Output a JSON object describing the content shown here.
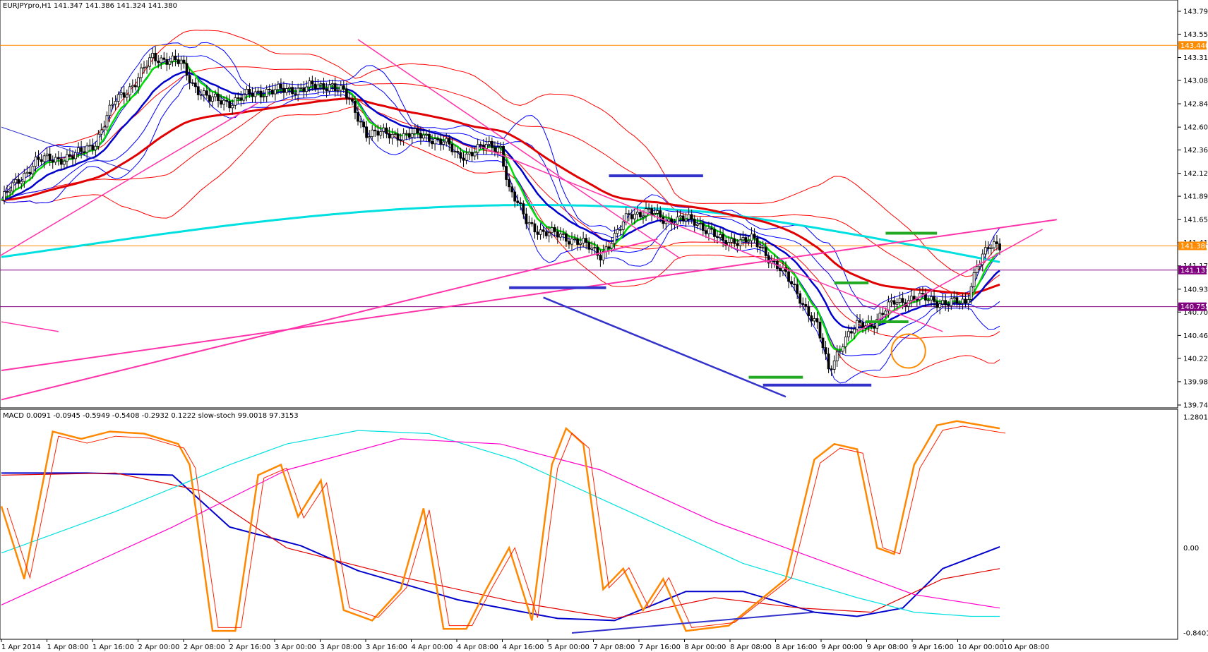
{
  "chart_data": [
    {
      "type": "candlestick",
      "header": "EURJPYpro,H1  141.347 141.386 141.324 141.380",
      "ylim": [
        139.745,
        143.79
      ],
      "price_ticks": [
        143.79,
        143.555,
        143.315,
        143.08,
        142.84,
        142.6,
        142.365,
        142.125,
        141.89,
        141.65,
        141.415,
        141.175,
        140.935,
        140.7,
        140.46,
        140.225,
        139.985,
        139.745
      ],
      "price_tick_labels": [
        "143.790",
        "143.555",
        "143.315",
        "143.080",
        "142.840",
        "142.600",
        "142.365",
        "142.125",
        "141.890",
        "141.650",
        "141.415",
        "141.175",
        "140.935",
        "140.700",
        "140.460",
        "140.225",
        "139.985",
        "139.745"
      ],
      "horizontal_levels": [
        {
          "value": 143.44,
          "label": "143.440",
          "color": "#FF8C00"
        },
        {
          "value": 141.38,
          "label": "141.380",
          "color": "#FF8C00"
        },
        {
          "value": 141.131,
          "label": "141.131",
          "color": "#800080"
        },
        {
          "value": 140.755,
          "label": "140.755",
          "color": "#800080"
        }
      ],
      "close_path": [
        [
          0,
          141.85
        ],
        [
          6,
          142.05
        ],
        [
          12,
          142.25
        ],
        [
          20,
          142.28
        ],
        [
          26,
          142.3
        ],
        [
          33,
          142.45
        ],
        [
          40,
          142.88
        ],
        [
          47,
          143.06
        ],
        [
          53,
          143.32
        ],
        [
          58,
          143.3
        ],
        [
          63,
          143.25
        ],
        [
          67,
          143.05
        ],
        [
          73,
          142.88
        ],
        [
          80,
          142.86
        ],
        [
          86,
          142.92
        ],
        [
          93,
          142.98
        ],
        [
          100,
          142.97
        ],
        [
          107,
          143.02
        ],
        [
          112,
          143.0
        ],
        [
          116,
          143.05
        ],
        [
          120,
          142.96
        ],
        [
          128,
          142.55
        ],
        [
          135,
          142.52
        ],
        [
          143,
          142.52
        ],
        [
          150,
          142.5
        ],
        [
          155,
          142.45
        ],
        [
          160,
          142.3
        ],
        [
          165,
          142.35
        ],
        [
          170,
          142.4
        ],
        [
          175,
          142.4
        ],
        [
          178,
          141.95
        ],
        [
          184,
          141.65
        ],
        [
          190,
          141.5
        ],
        [
          196,
          141.5
        ],
        [
          202,
          141.42
        ],
        [
          207,
          141.35
        ],
        [
          210,
          141.3
        ],
        [
          215,
          141.45
        ],
        [
          220,
          141.72
        ],
        [
          227,
          141.72
        ],
        [
          233,
          141.65
        ],
        [
          238,
          141.65
        ],
        [
          243,
          141.63
        ],
        [
          248,
          141.55
        ],
        [
          253,
          141.4
        ],
        [
          258,
          141.45
        ],
        [
          263,
          141.44
        ],
        [
          268,
          141.3
        ],
        [
          273,
          141.15
        ],
        [
          280,
          140.85
        ],
        [
          286,
          140.55
        ],
        [
          290,
          140.1
        ],
        [
          295,
          140.4
        ],
        [
          300,
          140.55
        ],
        [
          306,
          140.6
        ],
        [
          313,
          140.8
        ],
        [
          320,
          140.85
        ],
        [
          326,
          140.82
        ],
        [
          332,
          140.8
        ],
        [
          338,
          140.78
        ],
        [
          342,
          141.2
        ],
        [
          346,
          141.35
        ],
        [
          350,
          141.38
        ]
      ],
      "overlays": [
        {
          "name": "fast EMA",
          "color": "#00DD00"
        },
        {
          "name": "medium EMA",
          "color": "#0000CC"
        },
        {
          "name": "slow EMA",
          "color": "#E00000"
        },
        {
          "name": "long EMA",
          "color": "#00E0E0"
        },
        {
          "name": "bollinger bands",
          "color": "#FF0000"
        }
      ],
      "x_tick_labels": [
        "1 Apr 2014",
        "1 Apr 08:00",
        "1 Apr 16:00",
        "2 Apr 00:00",
        "2 Apr 08:00",
        "2 Apr 16:00",
        "3 Apr 00:00",
        "3 Apr 08:00",
        "3 Apr 16:00",
        "4 Apr 00:00",
        "4 Apr 08:00",
        "4 Apr 16:00",
        "5 Apr 00:00",
        "7 Apr 08:00",
        "7 Apr 16:00",
        "8 Apr 00:00",
        "8 Apr 08:00",
        "8 Apr 16:00",
        "9 Apr 00:00",
        "9 Apr 08:00",
        "9 Apr 16:00",
        "10 Apr 00:00",
        "10 Apr 08:00"
      ]
    },
    {
      "type": "line",
      "header": "MACD 0.0091 -0.0945 -0.5949 -0.5408 -0.2932 0.1222  slow-stoch 99.0018 97.3153",
      "ylim": [
        -0.8401,
        1.2801
      ],
      "tick_labels": [
        "1.2801",
        "0.00",
        "-0.8401"
      ],
      "series": [
        {
          "color": "#0000CC",
          "points": [
            [
              0,
              0.72
            ],
            [
              30,
              0.72
            ],
            [
              60,
              0.7
            ],
            [
              80,
              0.2
            ],
            [
              105,
              0.02
            ],
            [
              125,
              -0.22
            ],
            [
              160,
              -0.5
            ],
            [
              195,
              -0.68
            ],
            [
              215,
              -0.7
            ],
            [
              240,
              -0.42
            ],
            [
              260,
              -0.42
            ],
            [
              285,
              -0.62
            ],
            [
              300,
              -0.66
            ],
            [
              316,
              -0.58
            ],
            [
              330,
              -0.2
            ],
            [
              350,
              0.01
            ]
          ]
        },
        {
          "color": "#E00000",
          "points": [
            [
              0,
              0.7
            ],
            [
              40,
              0.72
            ],
            [
              70,
              0.55
            ],
            [
              100,
              0.0
            ],
            [
              140,
              -0.28
            ],
            [
              180,
              -0.52
            ],
            [
              215,
              -0.68
            ],
            [
              250,
              -0.48
            ],
            [
              280,
              -0.58
            ],
            [
              305,
              -0.62
            ],
            [
              330,
              -0.3
            ],
            [
              350,
              -0.2
            ]
          ]
        },
        {
          "color": "#00E0E0",
          "points": [
            [
              0,
              -0.05
            ],
            [
              40,
              0.35
            ],
            [
              80,
              0.8
            ],
            [
              100,
              1.0
            ],
            [
              125,
              1.13
            ],
            [
              150,
              1.1
            ],
            [
              180,
              0.85
            ],
            [
              220,
              0.35
            ],
            [
              260,
              -0.15
            ],
            [
              300,
              -0.48
            ],
            [
              320,
              -0.62
            ],
            [
              340,
              -0.66
            ],
            [
              350,
              -0.66
            ]
          ]
        },
        {
          "color": "#FF00CC",
          "points": [
            [
              0,
              -0.55
            ],
            [
              60,
              0.2
            ],
            [
              100,
              0.75
            ],
            [
              140,
              1.05
            ],
            [
              175,
              1.0
            ],
            [
              210,
              0.75
            ],
            [
              250,
              0.25
            ],
            [
              290,
              -0.15
            ],
            [
              320,
              -0.45
            ],
            [
              350,
              -0.58
            ]
          ]
        },
        {
          "color": "#FF8800",
          "points": [
            [
              0,
              0.4
            ],
            [
              8,
              -0.3
            ],
            [
              18,
              1.12
            ],
            [
              28,
              1.05
            ],
            [
              38,
              1.12
            ],
            [
              50,
              1.1
            ],
            [
              62,
              1.0
            ],
            [
              66,
              0.8
            ],
            [
              74,
              -0.8
            ],
            [
              82,
              -0.8
            ],
            [
              90,
              0.7
            ],
            [
              98,
              0.8
            ],
            [
              104,
              0.3
            ],
            [
              112,
              0.65
            ],
            [
              120,
              -0.6
            ],
            [
              130,
              -0.7
            ],
            [
              140,
              -0.4
            ],
            [
              148,
              0.38
            ],
            [
              155,
              -0.78
            ],
            [
              163,
              -0.78
            ],
            [
              170,
              -0.4
            ],
            [
              178,
              0.0
            ],
            [
              186,
              -0.7
            ],
            [
              193,
              0.8
            ],
            [
              198,
              1.15
            ],
            [
              204,
              1.0
            ],
            [
              211,
              -0.4
            ],
            [
              218,
              -0.2
            ],
            [
              225,
              -0.6
            ],
            [
              232,
              -0.3
            ],
            [
              240,
              -0.8
            ],
            [
              255,
              -0.75
            ],
            [
              275,
              -0.3
            ],
            [
              285,
              0.85
            ],
            [
              292,
              1.0
            ],
            [
              300,
              0.95
            ],
            [
              307,
              0.0
            ],
            [
              313,
              -0.06
            ],
            [
              320,
              0.8
            ],
            [
              328,
              1.18
            ],
            [
              335,
              1.22
            ],
            [
              350,
              1.15
            ]
          ]
        }
      ]
    }
  ]
}
